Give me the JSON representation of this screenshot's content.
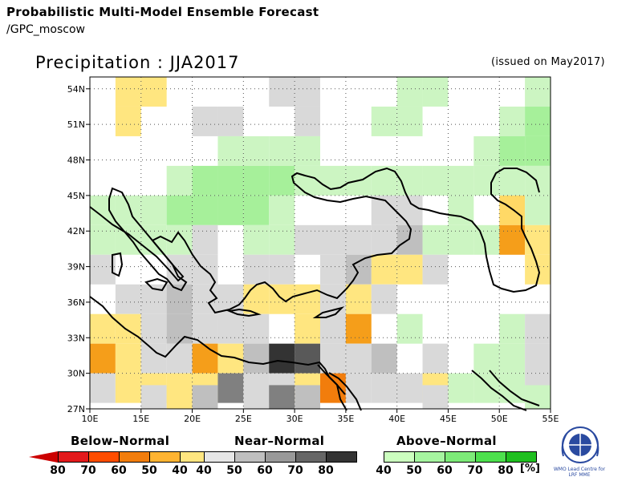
{
  "header": {
    "title": "Probabilistic Multi-Model Ensemble Forecast",
    "subtitle": "/GPC_moscow"
  },
  "plot": {
    "title": "Precipitation : JJA2017",
    "issued": "(issued on May2017)"
  },
  "map": {
    "lon_range": [
      10,
      55
    ],
    "lat_range": [
      27,
      55
    ],
    "x_ticks": [
      "10E",
      "15E",
      "20E",
      "25E",
      "30E",
      "35E",
      "40E",
      "45E",
      "50E",
      "55E"
    ],
    "y_ticks": [
      "54N",
      "51N",
      "48N",
      "45N",
      "42N",
      "39N",
      "36N",
      "33N",
      "30N",
      "27N"
    ],
    "grid": "dotted",
    "cell_size_deg": 2.5,
    "cells": [
      {
        "lon": 13.75,
        "lat": 53.75,
        "fill": "#ffe680"
      },
      {
        "lon": 13.75,
        "lat": 51.25,
        "fill": "#ffe680"
      },
      {
        "lon": 16.25,
        "lat": 53.75,
        "fill": "#ffe680"
      },
      {
        "lon": 28.75,
        "lat": 53.75,
        "fill": "#d9d9d9"
      },
      {
        "lon": 31.25,
        "lat": 53.75,
        "fill": "#d9d9d9"
      },
      {
        "lon": 21.25,
        "lat": 51.25,
        "fill": "#d9d9d9"
      },
      {
        "lon": 23.75,
        "lat": 51.25,
        "fill": "#d9d9d9"
      },
      {
        "lon": 31.25,
        "lat": 51.25,
        "fill": "#d9d9d9"
      },
      {
        "lon": 41.25,
        "lat": 53.75,
        "fill": "#ccf5c2"
      },
      {
        "lon": 43.75,
        "lat": 53.75,
        "fill": "#ccf5c2"
      },
      {
        "lon": 38.75,
        "lat": 51.25,
        "fill": "#ccf5c2"
      },
      {
        "lon": 41.25,
        "lat": 51.25,
        "fill": "#ccf5c2"
      },
      {
        "lon": 51.25,
        "lat": 51.25,
        "fill": "#ccf5c2"
      },
      {
        "lon": 53.75,
        "lat": 51.25,
        "fill": "#a6f09a"
      },
      {
        "lon": 53.75,
        "lat": 53.75,
        "fill": "#ccf5c2"
      },
      {
        "lon": 23.75,
        "lat": 48.75,
        "fill": "#ccf5c2"
      },
      {
        "lon": 26.25,
        "lat": 48.75,
        "fill": "#ccf5c2"
      },
      {
        "lon": 28.75,
        "lat": 48.75,
        "fill": "#ccf5c2"
      },
      {
        "lon": 31.25,
        "lat": 48.75,
        "fill": "#ccf5c2"
      },
      {
        "lon": 48.75,
        "lat": 48.75,
        "fill": "#ccf5c2"
      },
      {
        "lon": 51.25,
        "lat": 48.75,
        "fill": "#a6f09a"
      },
      {
        "lon": 53.75,
        "lat": 48.75,
        "fill": "#a6f09a"
      },
      {
        "lon": 18.75,
        "lat": 46.25,
        "fill": "#ccf5c2"
      },
      {
        "lon": 21.25,
        "lat": 46.25,
        "fill": "#a6f09a"
      },
      {
        "lon": 23.75,
        "lat": 46.25,
        "fill": "#a6f09a"
      },
      {
        "lon": 26.25,
        "lat": 46.25,
        "fill": "#a6f09a"
      },
      {
        "lon": 28.75,
        "lat": 46.25,
        "fill": "#a6f09a"
      },
      {
        "lon": 31.25,
        "lat": 46.25,
        "fill": "#ccf5c2"
      },
      {
        "lon": 33.75,
        "lat": 46.25,
        "fill": "#ccf5c2"
      },
      {
        "lon": 36.25,
        "lat": 46.25,
        "fill": "#ccf5c2"
      },
      {
        "lon": 38.75,
        "lat": 46.25,
        "fill": "#ccf5c2"
      },
      {
        "lon": 41.25,
        "lat": 46.25,
        "fill": "#ccf5c2"
      },
      {
        "lon": 43.75,
        "lat": 46.25,
        "fill": "#ccf5c2"
      },
      {
        "lon": 46.25,
        "lat": 46.25,
        "fill": "#ccf5c2"
      },
      {
        "lon": 48.75,
        "lat": 46.25,
        "fill": "#ccf5c2"
      },
      {
        "lon": 51.25,
        "lat": 46.25,
        "fill": "#ccf5c2"
      },
      {
        "lon": 53.75,
        "lat": 46.25,
        "fill": "#ccf5c2"
      },
      {
        "lon": 11.25,
        "lat": 43.75,
        "fill": "#ccf5c2"
      },
      {
        "lon": 13.75,
        "lat": 43.75,
        "fill": "#ccf5c2"
      },
      {
        "lon": 16.25,
        "lat": 43.75,
        "fill": "#ccf5c2"
      },
      {
        "lon": 18.75,
        "lat": 43.75,
        "fill": "#a6f09a"
      },
      {
        "lon": 21.25,
        "lat": 43.75,
        "fill": "#a6f09a"
      },
      {
        "lon": 23.75,
        "lat": 43.75,
        "fill": "#a6f09a"
      },
      {
        "lon": 26.25,
        "lat": 43.75,
        "fill": "#a6f09a"
      },
      {
        "lon": 28.75,
        "lat": 43.75,
        "fill": "#ccf5c2"
      },
      {
        "lon": 38.75,
        "lat": 43.75,
        "fill": "#d9d9d9"
      },
      {
        "lon": 41.25,
        "lat": 43.75,
        "fill": "#d9d9d9"
      },
      {
        "lon": 46.25,
        "lat": 43.75,
        "fill": "#ccf5c2"
      },
      {
        "lon": 51.25,
        "lat": 43.75,
        "fill": "#ffd966"
      },
      {
        "lon": 53.75,
        "lat": 43.75,
        "fill": "#ccf5c2"
      },
      {
        "lon": 11.25,
        "lat": 41.25,
        "fill": "#ccf5c2"
      },
      {
        "lon": 13.75,
        "lat": 41.25,
        "fill": "#ccf5c2"
      },
      {
        "lon": 16.25,
        "lat": 41.25,
        "fill": "#ccf5c2"
      },
      {
        "lon": 18.75,
        "lat": 41.25,
        "fill": "#ccf5c2"
      },
      {
        "lon": 21.25,
        "lat": 41.25,
        "fill": "#d9d9d9"
      },
      {
        "lon": 26.25,
        "lat": 41.25,
        "fill": "#ccf5c2"
      },
      {
        "lon": 28.75,
        "lat": 41.25,
        "fill": "#ccf5c2"
      },
      {
        "lon": 31.25,
        "lat": 41.25,
        "fill": "#d9d9d9"
      },
      {
        "lon": 33.75,
        "lat": 41.25,
        "fill": "#d9d9d9"
      },
      {
        "lon": 36.25,
        "lat": 41.25,
        "fill": "#d9d9d9"
      },
      {
        "lon": 38.75,
        "lat": 41.25,
        "fill": "#d9d9d9"
      },
      {
        "lon": 41.25,
        "lat": 41.25,
        "fill": "#bfbfbf"
      },
      {
        "lon": 43.75,
        "lat": 41.25,
        "fill": "#ccf5c2"
      },
      {
        "lon": 46.25,
        "lat": 41.25,
        "fill": "#ccf5c2"
      },
      {
        "lon": 48.75,
        "lat": 41.25,
        "fill": "#ccf5c2"
      },
      {
        "lon": 51.25,
        "lat": 41.25,
        "fill": "#f59e1a"
      },
      {
        "lon": 53.75,
        "lat": 41.25,
        "fill": "#ffe680"
      },
      {
        "lon": 11.25,
        "lat": 38.75,
        "fill": "#d9d9d9"
      },
      {
        "lon": 18.75,
        "lat": 38.75,
        "fill": "#d9d9d9"
      },
      {
        "lon": 21.25,
        "lat": 38.75,
        "fill": "#d9d9d9"
      },
      {
        "lon": 26.25,
        "lat": 38.75,
        "fill": "#d9d9d9"
      },
      {
        "lon": 28.75,
        "lat": 38.75,
        "fill": "#d9d9d9"
      },
      {
        "lon": 33.75,
        "lat": 38.75,
        "fill": "#d9d9d9"
      },
      {
        "lon": 36.25,
        "lat": 38.75,
        "fill": "#bfbfbf"
      },
      {
        "lon": 38.75,
        "lat": 38.75,
        "fill": "#ffe680"
      },
      {
        "lon": 41.25,
        "lat": 38.75,
        "fill": "#ffe680"
      },
      {
        "lon": 43.75,
        "lat": 38.75,
        "fill": "#d9d9d9"
      },
      {
        "lon": 53.75,
        "lat": 38.75,
        "fill": "#ffe680"
      },
      {
        "lon": 13.75,
        "lat": 36.25,
        "fill": "#d9d9d9"
      },
      {
        "lon": 16.25,
        "lat": 36.25,
        "fill": "#d9d9d9"
      },
      {
        "lon": 18.75,
        "lat": 36.25,
        "fill": "#bfbfbf"
      },
      {
        "lon": 21.25,
        "lat": 36.25,
        "fill": "#d9d9d9"
      },
      {
        "lon": 23.75,
        "lat": 36.25,
        "fill": "#d9d9d9"
      },
      {
        "lon": 26.25,
        "lat": 36.25,
        "fill": "#ffe680"
      },
      {
        "lon": 28.75,
        "lat": 36.25,
        "fill": "#ffe680"
      },
      {
        "lon": 31.25,
        "lat": 36.25,
        "fill": "#ffe680"
      },
      {
        "lon": 33.75,
        "lat": 36.25,
        "fill": "#d9d9d9"
      },
      {
        "lon": 36.25,
        "lat": 36.25,
        "fill": "#ffe680"
      },
      {
        "lon": 38.75,
        "lat": 36.25,
        "fill": "#d9d9d9"
      },
      {
        "lon": 11.25,
        "lat": 33.75,
        "fill": "#ffe680"
      },
      {
        "lon": 13.75,
        "lat": 33.75,
        "fill": "#ffe680"
      },
      {
        "lon": 16.25,
        "lat": 33.75,
        "fill": "#d9d9d9"
      },
      {
        "lon": 18.75,
        "lat": 33.75,
        "fill": "#bfbfbf"
      },
      {
        "lon": 21.25,
        "lat": 33.75,
        "fill": "#d9d9d9"
      },
      {
        "lon": 23.75,
        "lat": 33.75,
        "fill": "#d9d9d9"
      },
      {
        "lon": 26.25,
        "lat": 33.75,
        "fill": "#d9d9d9"
      },
      {
        "lon": 31.25,
        "lat": 33.75,
        "fill": "#ffe680"
      },
      {
        "lon": 33.75,
        "lat": 33.75,
        "fill": "#d9d9d9"
      },
      {
        "lon": 36.25,
        "lat": 33.75,
        "fill": "#f59e1a"
      },
      {
        "lon": 41.25,
        "lat": 33.75,
        "fill": "#ccf5c2"
      },
      {
        "lon": 51.25,
        "lat": 33.75,
        "fill": "#ccf5c2"
      },
      {
        "lon": 53.75,
        "lat": 33.75,
        "fill": "#d9d9d9"
      },
      {
        "lon": 11.25,
        "lat": 31.25,
        "fill": "#f59e1a"
      },
      {
        "lon": 13.75,
        "lat": 31.25,
        "fill": "#ffe680"
      },
      {
        "lon": 16.25,
        "lat": 31.25,
        "fill": "#d9d9d9"
      },
      {
        "lon": 18.75,
        "lat": 31.25,
        "fill": "#d9d9d9"
      },
      {
        "lon": 21.25,
        "lat": 31.25,
        "fill": "#f59e1a"
      },
      {
        "lon": 23.75,
        "lat": 31.25,
        "fill": "#ffe680"
      },
      {
        "lon": 26.25,
        "lat": 31.25,
        "fill": "#bfbfbf"
      },
      {
        "lon": 28.75,
        "lat": 31.25,
        "fill": "#333333"
      },
      {
        "lon": 31.25,
        "lat": 31.25,
        "fill": "#595959"
      },
      {
        "lon": 33.75,
        "lat": 31.25,
        "fill": "#d9d9d9"
      },
      {
        "lon": 36.25,
        "lat": 31.25,
        "fill": "#d9d9d9"
      },
      {
        "lon": 38.75,
        "lat": 31.25,
        "fill": "#bfbfbf"
      },
      {
        "lon": 43.75,
        "lat": 31.25,
        "fill": "#d9d9d9"
      },
      {
        "lon": 48.75,
        "lat": 31.25,
        "fill": "#ccf5c2"
      },
      {
        "lon": 51.25,
        "lat": 31.25,
        "fill": "#ccf5c2"
      },
      {
        "lon": 53.75,
        "lat": 31.25,
        "fill": "#d9d9d9"
      },
      {
        "lon": 11.25,
        "lat": 28.75,
        "fill": "#d9d9d9"
      },
      {
        "lon": 13.75,
        "lat": 28.75,
        "fill": "#ffe680"
      },
      {
        "lon": 16.25,
        "lat": 28.75,
        "fill": "#ffe680"
      },
      {
        "lon": 18.75,
        "lat": 28.75,
        "fill": "#ffe680"
      },
      {
        "lon": 21.25,
        "lat": 28.75,
        "fill": "#ffe680"
      },
      {
        "lon": 23.75,
        "lat": 28.75,
        "fill": "#808080"
      },
      {
        "lon": 26.25,
        "lat": 28.75,
        "fill": "#d9d9d9"
      },
      {
        "lon": 28.75,
        "lat": 28.75,
        "fill": "#d9d9d9"
      },
      {
        "lon": 31.25,
        "lat": 28.75,
        "fill": "#ffe680"
      },
      {
        "lon": 33.75,
        "lat": 28.75,
        "fill": "#f27d0c"
      },
      {
        "lon": 36.25,
        "lat": 28.75,
        "fill": "#d9d9d9"
      },
      {
        "lon": 38.75,
        "lat": 28.75,
        "fill": "#d9d9d9"
      },
      {
        "lon": 41.25,
        "lat": 28.75,
        "fill": "#d9d9d9"
      },
      {
        "lon": 43.75,
        "lat": 28.75,
        "fill": "#ffe680"
      },
      {
        "lon": 46.25,
        "lat": 28.75,
        "fill": "#ccf5c2"
      },
      {
        "lon": 48.75,
        "lat": 28.75,
        "fill": "#ccf5c2"
      },
      {
        "lon": 51.25,
        "lat": 28.75,
        "fill": "#ccf5c2"
      },
      {
        "lon": 53.75,
        "lat": 28.75,
        "fill": "#d9d9d9"
      },
      {
        "lon": 16.25,
        "lat": 27.75,
        "fill": "#d9d9d9"
      },
      {
        "lon": 18.75,
        "lat": 27.75,
        "fill": "#ffe680"
      },
      {
        "lon": 21.25,
        "lat": 27.75,
        "fill": "#bfbfbf"
      },
      {
        "lon": 26.25,
        "lat": 27.75,
        "fill": "#d9d9d9"
      },
      {
        "lon": 28.75,
        "lat": 27.75,
        "fill": "#808080"
      },
      {
        "lon": 31.25,
        "lat": 27.75,
        "fill": "#bfbfbf"
      },
      {
        "lon": 43.75,
        "lat": 27.75,
        "fill": "#d9d9d9"
      },
      {
        "lon": 53.75,
        "lat": 27.75,
        "fill": "#ccf5c2"
      }
    ]
  },
  "legend": {
    "below": {
      "title": "Below–Normal",
      "ticks": [
        "80",
        "70",
        "60",
        "50",
        "40"
      ],
      "colors": [
        "#e31a1c",
        "#ff4d00",
        "#f27d0c",
        "#ffb432",
        "#ffe680"
      ]
    },
    "near": {
      "title": "Near–Normal",
      "ticks": [
        "40",
        "50",
        "60",
        "70",
        "80"
      ],
      "colors": [
        "#e6e6e6",
        "#bfbfbf",
        "#999999",
        "#666666",
        "#333333"
      ]
    },
    "above": {
      "title": "Above–Normal",
      "ticks": [
        "40",
        "50",
        "60",
        "70",
        "80"
      ],
      "colors": [
        "#ccffbf",
        "#a6f5a0",
        "#7deb78",
        "#4de04d",
        "#1fbf1f"
      ],
      "units": "[%]"
    }
  },
  "logo": {
    "name": "wmo-emblem",
    "text": "WMO Lead Centre for LRF MME"
  }
}
